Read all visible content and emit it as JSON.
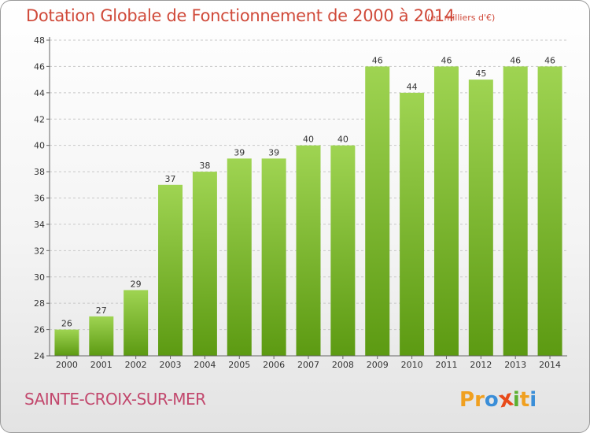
{
  "header": {
    "title": "Dotation Globale de Fonctionnement de 2000 à 2014",
    "subtitle": "(en milliers d'€)"
  },
  "footer": {
    "commune": "SAINTE-CROIX-SUR-MER",
    "logo_letters": [
      "P",
      "r",
      "o",
      "x",
      "i",
      "t",
      "i"
    ]
  },
  "colors": {
    "title": "#d04a3a",
    "commune": "#c2486d",
    "bar_top": "#9fd452",
    "bar_bottom": "#5c9a12",
    "logo": [
      "#f0a020",
      "#f0a020",
      "#3a8ed8",
      "#e84a1a",
      "#5cb030",
      "#f0a020",
      "#3a8ed8"
    ]
  },
  "chart_data": {
    "type": "bar",
    "title": "Dotation Globale de Fonctionnement de 2000 à 2014",
    "subtitle": "(en milliers d'€)",
    "categories": [
      "2000",
      "2001",
      "2002",
      "2003",
      "2004",
      "2005",
      "2006",
      "2007",
      "2008",
      "2009",
      "2010",
      "2011",
      "2012",
      "2013",
      "2014"
    ],
    "values": [
      26,
      27,
      29,
      37,
      38,
      39,
      39,
      40,
      40,
      46,
      44,
      46,
      45,
      46,
      46
    ],
    "ylim": [
      24,
      48
    ],
    "yticks": [
      24,
      26,
      28,
      30,
      32,
      34,
      36,
      38,
      40,
      42,
      44,
      46,
      48
    ],
    "grid": true,
    "data_labels": true
  }
}
